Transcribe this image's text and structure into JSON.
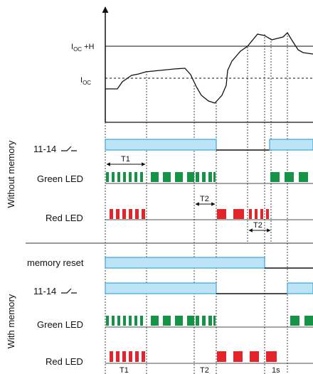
{
  "levels": {
    "ioc_h": {
      "main": "I",
      "sub": "OC",
      "suffix": " +H"
    },
    "ioc": {
      "main": "I",
      "sub": "OC"
    }
  },
  "sections": {
    "without_memory": "Without memory",
    "with_memory": "With memory"
  },
  "rows": {
    "contact_11_14": "11-14",
    "green_led": "Green LED",
    "red_led": "Red LED",
    "memory_reset": "memory reset"
  },
  "timing": {
    "t1": "T1",
    "t2": "T2",
    "one_s": "1s"
  },
  "colors": {
    "relay_fill": "#bde3f7",
    "relay_stroke": "#3aa6dc",
    "green": "#159447",
    "red": "#e3242b",
    "line": "#111111"
  }
}
